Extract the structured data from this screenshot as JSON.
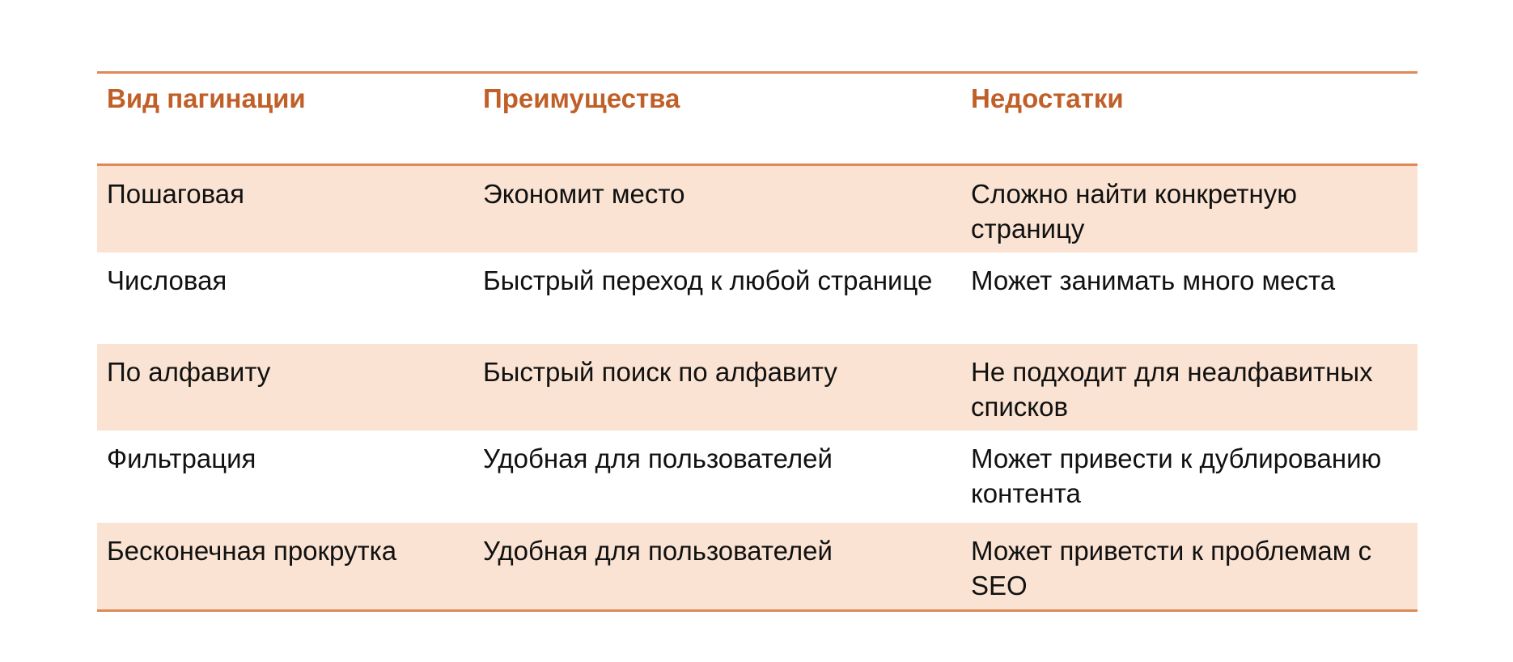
{
  "table": {
    "columns": [
      {
        "label": "Вид пагинации"
      },
      {
        "label": "Преимущества"
      },
      {
        "label": "Недостатки"
      }
    ],
    "rows": [
      {
        "pagination_type": "Пошаговая",
        "advantages": "Экономит место",
        "disadvantages": "Сложно найти конкретную страницу"
      },
      {
        "pagination_type": "Числовая",
        "advantages": "Быстрый переход к любой странице",
        "disadvantages": "Может занимать много места"
      },
      {
        "pagination_type": "По алфавиту",
        "advantages": "Быстрый поиск по алфавиту",
        "disadvantages": "Не подходит для неалфавитных списков"
      },
      {
        "pagination_type": "Фильтрация",
        "advantages": "Удобная для пользователей",
        "disadvantages": "Может привести к дублированию контента"
      },
      {
        "pagination_type": "Бесконечная прокрутка",
        "advantages": "Удобная для пользователей",
        "disadvantages": "Может приветсти к проблемам с SEO"
      }
    ]
  },
  "colors": {
    "accent_border": "#DE8A58",
    "header_text": "#C05F28",
    "row_shaded_bg": "#FAE3D2",
    "body_text": "#111111",
    "page_bg": "#ffffff"
  }
}
